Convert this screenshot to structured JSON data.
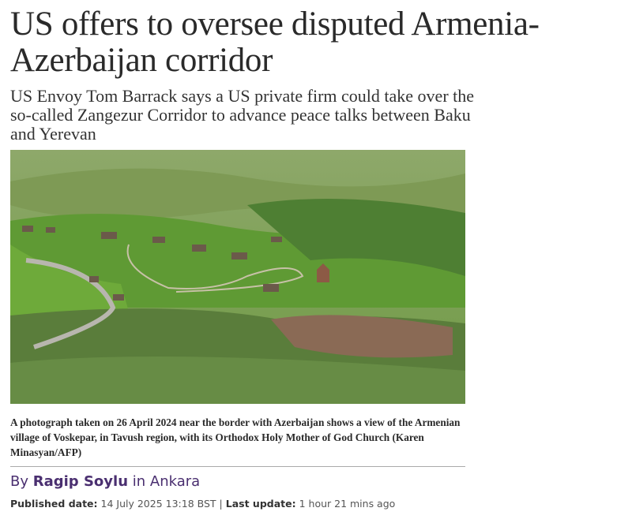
{
  "headline": "US offers to oversee disputed Armenia-Azerbaijan corridor",
  "subheadline": "US Envoy Tom Barrack says a US private firm could take over the so-called Zangezur Corridor to advance peace talks between Baku and Yerevan",
  "photo": {
    "alt": "Aerial view of the Armenian village of Voskepar with green hills and church",
    "caption": "A photograph taken on 26 April 2024 near the border with Azerbaijan shows a view of the Armenian village of Voskepar, in Tavush region, with its Orthodox Holy Mother of God Church (Karen Minasyan/AFP)"
  },
  "byline": {
    "prefix": "By",
    "author": "Ragip Soylu",
    "location_prefix": "in",
    "location": "Ankara"
  },
  "meta": {
    "published_label": "Published date:",
    "published_value": "14 July 2025 13:18 BST",
    "separator": "|",
    "updated_label": "Last update:",
    "updated_value": "1 hour 21 mins ago"
  },
  "colors": {
    "author": "#4a2f70"
  }
}
